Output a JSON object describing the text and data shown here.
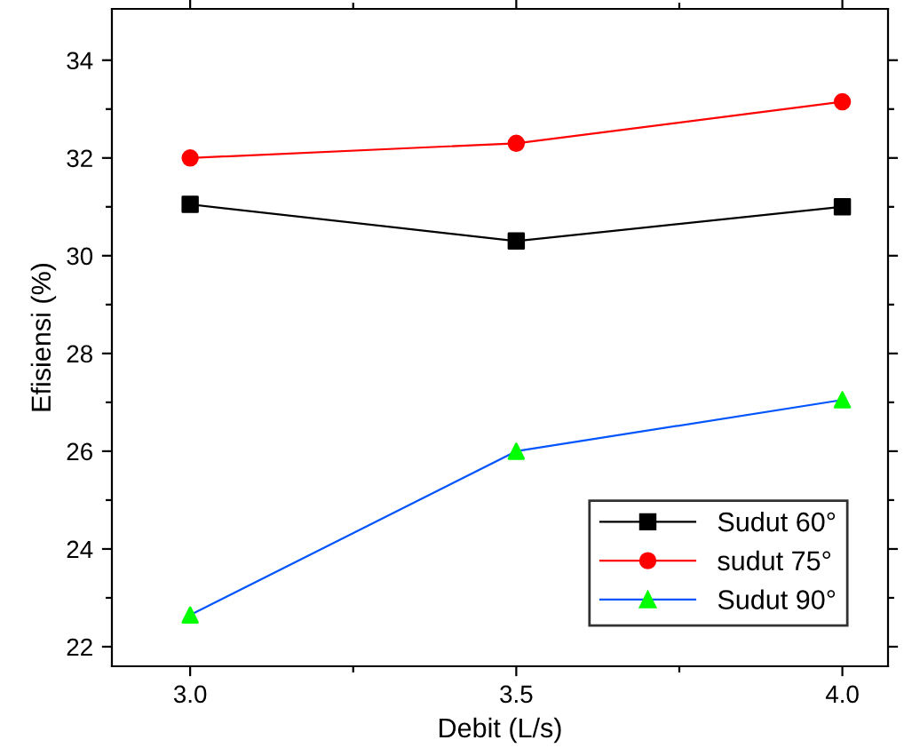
{
  "chart_data": {
    "type": "line",
    "xlabel": "Debit (L/s)",
    "ylabel": "Efisiensi (%)",
    "x": [
      3.0,
      3.5,
      4.0
    ],
    "series": [
      {
        "name": "Sudut 60°",
        "color": "#000000",
        "colors": [
          "#000000",
          "#000000",
          "#000000"
        ],
        "marker": "square",
        "values": [
          31.05,
          30.3,
          31.0
        ]
      },
      {
        "name": "sudut 75°",
        "color": "#ff0000",
        "colors": [
          "#ff0000",
          "#ff0000",
          "#ff0000"
        ],
        "marker": "circle",
        "values": [
          32.0,
          32.3,
          33.15
        ]
      },
      {
        "name": "Sudut 90°",
        "color": "#0055ff",
        "colors": [
          "#00ff00",
          "#00ff00",
          "#00ff00"
        ],
        "marker": "triangle",
        "values": [
          22.65,
          26.0,
          27.05
        ]
      }
    ],
    "xlim": [
      2.88,
      4.07
    ],
    "ylim": [
      21.6,
      35.05
    ],
    "xticks": [
      {
        "value": 3.0,
        "label": "3.0"
      },
      {
        "value": 3.25,
        "label": null
      },
      {
        "value": 3.5,
        "label": "3.5"
      },
      {
        "value": 3.75,
        "label": null
      },
      {
        "value": 4.0,
        "label": "4.0"
      }
    ],
    "yticks": [
      22,
      {
        "value": 23,
        "label": null
      },
      24,
      {
        "value": 25,
        "label": null
      },
      26,
      {
        "value": 27,
        "label": null
      },
      28,
      {
        "value": 29,
        "label": null
      },
      30,
      {
        "value": 31,
        "label": null
      },
      32,
      {
        "value": 33,
        "label": null
      },
      34
    ],
    "legend": "bottom right",
    "grid": false,
    "line_style": "solid"
  }
}
